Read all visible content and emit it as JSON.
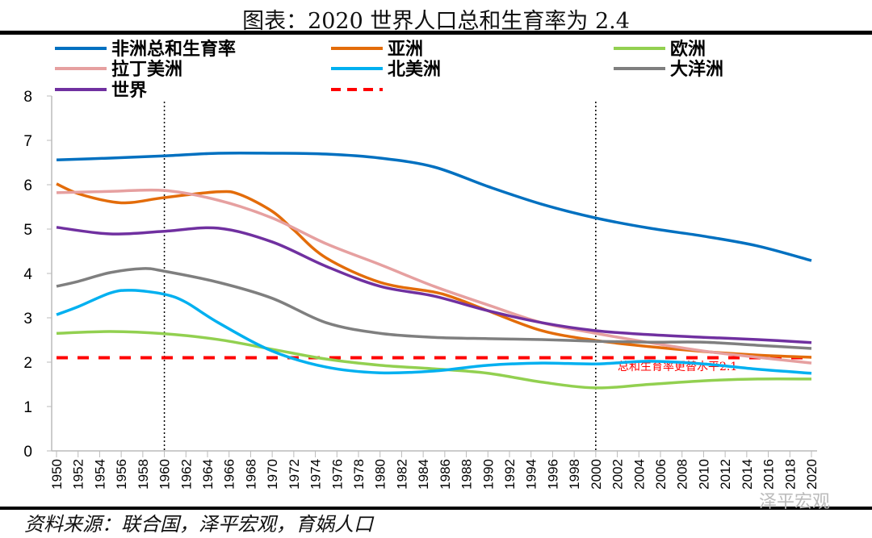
{
  "title": "图表：2020 世界人口总和生育率为 2.4",
  "source": "资料来源：联合国，泽平宏观，育娲人口",
  "watermark": "泽平宏观",
  "chart_data": {
    "type": "line",
    "title": "图表：2020 世界人口总和生育率为 2.4",
    "xlim": [
      1950,
      2020
    ],
    "ylim": [
      0,
      8
    ],
    "yticks": [
      0,
      1,
      2,
      3,
      4,
      5,
      6,
      7,
      8
    ],
    "xticks": [
      1950,
      1952,
      1954,
      1956,
      1958,
      1960,
      1962,
      1964,
      1966,
      1968,
      1970,
      1972,
      1974,
      1976,
      1978,
      1980,
      1982,
      1984,
      1986,
      1988,
      1990,
      1992,
      1994,
      1996,
      1998,
      2000,
      2002,
      2004,
      2006,
      2008,
      2010,
      2012,
      2014,
      2016,
      2018,
      2020
    ],
    "legend": "top",
    "vertical_lines": [
      1960,
      2000
    ],
    "replacement_level": {
      "value": 2.1,
      "label": "总和生育率更替水平2.1",
      "color": "#ff0000"
    },
    "series": [
      {
        "name": "非洲总和生育率",
        "color": "#0070c0",
        "x": [
          1950,
          1955,
          1960,
          1965,
          1970,
          1975,
          1980,
          1985,
          1990,
          1995,
          2000,
          2005,
          2010,
          2015,
          2020
        ],
        "values": [
          6.56,
          6.6,
          6.65,
          6.71,
          6.71,
          6.69,
          6.6,
          6.4,
          5.96,
          5.56,
          5.25,
          5.02,
          4.84,
          4.62,
          4.29
        ]
      },
      {
        "name": "亚洲",
        "color": "#e36c0a",
        "x": [
          1950,
          1952,
          1955,
          1957,
          1960,
          1965,
          1967,
          1970,
          1972,
          1975,
          1980,
          1985,
          1987,
          1990,
          1995,
          2000,
          2005,
          2010,
          2015,
          2020
        ],
        "values": [
          6.02,
          5.8,
          5.62,
          5.6,
          5.71,
          5.84,
          5.78,
          5.4,
          4.98,
          4.35,
          3.8,
          3.58,
          3.44,
          3.16,
          2.71,
          2.49,
          2.35,
          2.24,
          2.16,
          2.11
        ]
      },
      {
        "name": "欧洲",
        "color": "#92d050",
        "x": [
          1950,
          1955,
          1960,
          1965,
          1970,
          1975,
          1980,
          1985,
          1990,
          1995,
          2000,
          2005,
          2010,
          2015,
          2020
        ],
        "values": [
          2.65,
          2.69,
          2.64,
          2.51,
          2.29,
          2.07,
          1.93,
          1.85,
          1.75,
          1.55,
          1.42,
          1.5,
          1.58,
          1.62,
          1.62
        ]
      },
      {
        "name": "拉丁美洲",
        "color": "#e6a0a0",
        "x": [
          1950,
          1955,
          1960,
          1965,
          1970,
          1975,
          1980,
          1985,
          1990,
          1995,
          2000,
          2005,
          2010,
          2015,
          2020
        ],
        "values": [
          5.82,
          5.85,
          5.87,
          5.65,
          5.25,
          4.67,
          4.2,
          3.71,
          3.29,
          2.89,
          2.65,
          2.44,
          2.25,
          2.11,
          1.98
        ]
      },
      {
        "name": "北美洲",
        "color": "#00b0f0",
        "x": [
          1950,
          1952,
          1955,
          1957,
          1960,
          1962,
          1965,
          1970,
          1975,
          1980,
          1985,
          1990,
          1995,
          2000,
          2005,
          2010,
          2015,
          2020
        ],
        "values": [
          3.07,
          3.25,
          3.56,
          3.62,
          3.53,
          3.35,
          2.89,
          2.25,
          1.89,
          1.76,
          1.8,
          1.93,
          1.98,
          1.96,
          2.02,
          1.96,
          1.84,
          1.75
        ]
      },
      {
        "name": "大洋洲",
        "color": "#7f7f7f",
        "x": [
          1950,
          1952,
          1955,
          1958,
          1960,
          1965,
          1970,
          1975,
          1980,
          1985,
          1990,
          1995,
          2000,
          2005,
          2010,
          2015,
          2020
        ],
        "values": [
          3.71,
          3.82,
          4.02,
          4.11,
          4.05,
          3.8,
          3.44,
          2.89,
          2.65,
          2.56,
          2.53,
          2.51,
          2.47,
          2.45,
          2.45,
          2.38,
          2.31
        ]
      },
      {
        "name": "世界",
        "color": "#7030a0",
        "x": [
          1950,
          1955,
          1960,
          1965,
          1970,
          1975,
          1980,
          1985,
          1990,
          1995,
          2000,
          2005,
          2010,
          2015,
          2020
        ],
        "values": [
          5.04,
          4.89,
          4.95,
          5.02,
          4.71,
          4.16,
          3.71,
          3.49,
          3.16,
          2.89,
          2.71,
          2.62,
          2.56,
          2.51,
          2.44
        ]
      }
    ]
  }
}
